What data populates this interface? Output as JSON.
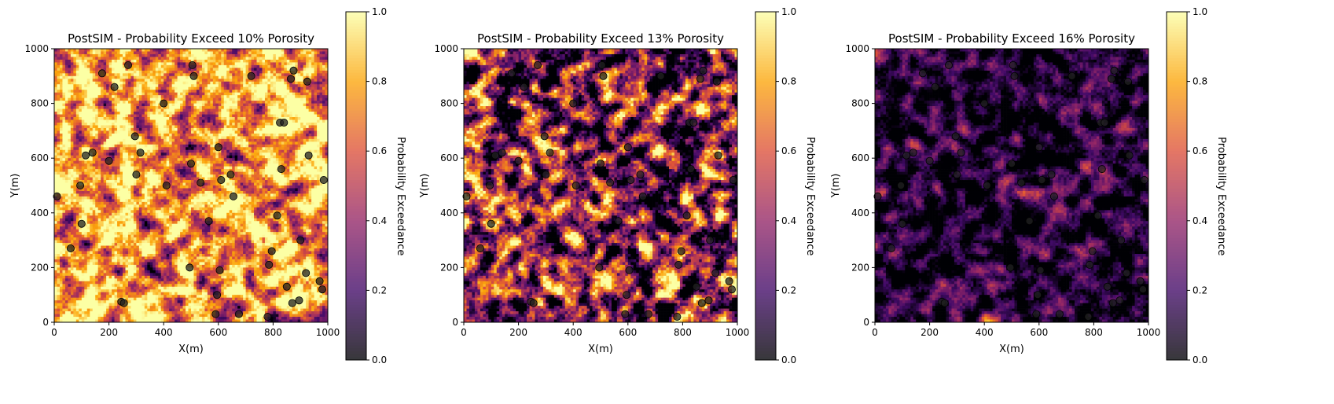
{
  "chart_data": [
    {
      "type": "heatmap",
      "title": "PostSIM - Probability Exceed 10% Porosity",
      "xlabel": "X(m)",
      "ylabel": "Y(m)",
      "xlim": [
        0,
        1000
      ],
      "ylim": [
        0,
        1000
      ],
      "xticks": [
        "0",
        "200",
        "400",
        "600",
        "800",
        "1000"
      ],
      "yticks": [
        "0",
        "200",
        "400",
        "600",
        "800",
        "1000"
      ],
      "grid": false,
      "colormap": "inferno",
      "colorbar": {
        "label": "Probability Exceedance",
        "range": [
          0.0,
          1.0
        ],
        "ticks": [
          "0.0",
          "0.2",
          "0.4",
          "0.6",
          "0.8",
          "1.0"
        ]
      },
      "field": {
        "resolution": 100,
        "mean_value": 0.78,
        "contrast": 0.32,
        "seed": 11
      },
      "wells": [
        [
          10,
          460
        ],
        [
          60,
          270
        ],
        [
          95,
          500
        ],
        [
          100,
          360
        ],
        [
          115,
          610
        ],
        [
          140,
          620
        ],
        [
          175,
          910
        ],
        [
          200,
          590
        ],
        [
          220,
          860
        ],
        [
          245,
          75
        ],
        [
          255,
          70
        ],
        [
          270,
          940
        ],
        [
          295,
          680
        ],
        [
          300,
          540
        ],
        [
          315,
          620
        ],
        [
          400,
          800
        ],
        [
          410,
          500
        ],
        [
          495,
          200
        ],
        [
          500,
          580
        ],
        [
          505,
          940
        ],
        [
          510,
          900
        ],
        [
          535,
          510
        ],
        [
          565,
          370
        ],
        [
          590,
          30
        ],
        [
          595,
          100
        ],
        [
          600,
          640
        ],
        [
          605,
          190
        ],
        [
          610,
          520
        ],
        [
          645,
          540
        ],
        [
          655,
          460
        ],
        [
          675,
          30
        ],
        [
          720,
          900
        ],
        [
          780,
          20
        ],
        [
          785,
          210
        ],
        [
          795,
          260
        ],
        [
          815,
          390
        ],
        [
          825,
          730
        ],
        [
          830,
          560
        ],
        [
          840,
          730
        ],
        [
          850,
          130
        ],
        [
          865,
          890
        ],
        [
          870,
          70
        ],
        [
          875,
          920
        ],
        [
          895,
          80
        ],
        [
          900,
          300
        ],
        [
          920,
          180
        ],
        [
          925,
          880
        ],
        [
          930,
          610
        ],
        [
          970,
          150
        ],
        [
          980,
          120
        ],
        [
          985,
          520
        ]
      ]
    },
    {
      "type": "heatmap",
      "title": "PostSIM - Probability Exceed 13% Porosity",
      "xlabel": "X(m)",
      "ylabel": "Y(m)",
      "xlim": [
        0,
        1000
      ],
      "ylim": [
        0,
        1000
      ],
      "xticks": [
        "0",
        "200",
        "400",
        "600",
        "800",
        "1000"
      ],
      "yticks": [
        "0",
        "200",
        "400",
        "600",
        "800",
        "1000"
      ],
      "grid": false,
      "colormap": "inferno",
      "colorbar": {
        "label": "Probability Exceedance",
        "range": [
          0.0,
          1.0
        ],
        "ticks": [
          "0.0",
          "0.2",
          "0.4",
          "0.6",
          "0.8",
          "1.0"
        ]
      },
      "field": {
        "resolution": 100,
        "mean_value": 0.38,
        "contrast": 0.42,
        "seed": 23
      },
      "wells": [
        [
          10,
          460
        ],
        [
          60,
          270
        ],
        [
          95,
          500
        ],
        [
          100,
          360
        ],
        [
          115,
          610
        ],
        [
          140,
          620
        ],
        [
          175,
          910
        ],
        [
          200,
          590
        ],
        [
          220,
          860
        ],
        [
          245,
          75
        ],
        [
          255,
          70
        ],
        [
          270,
          940
        ],
        [
          295,
          680
        ],
        [
          300,
          540
        ],
        [
          315,
          620
        ],
        [
          400,
          800
        ],
        [
          410,
          500
        ],
        [
          495,
          200
        ],
        [
          500,
          580
        ],
        [
          505,
          940
        ],
        [
          510,
          900
        ],
        [
          535,
          510
        ],
        [
          565,
          370
        ],
        [
          590,
          30
        ],
        [
          595,
          100
        ],
        [
          600,
          640
        ],
        [
          605,
          190
        ],
        [
          610,
          520
        ],
        [
          645,
          540
        ],
        [
          655,
          460
        ],
        [
          675,
          30
        ],
        [
          720,
          900
        ],
        [
          780,
          20
        ],
        [
          785,
          210
        ],
        [
          795,
          260
        ],
        [
          815,
          390
        ],
        [
          825,
          730
        ],
        [
          830,
          560
        ],
        [
          840,
          730
        ],
        [
          850,
          130
        ],
        [
          865,
          890
        ],
        [
          870,
          70
        ],
        [
          875,
          920
        ],
        [
          895,
          80
        ],
        [
          900,
          300
        ],
        [
          920,
          180
        ],
        [
          925,
          880
        ],
        [
          930,
          610
        ],
        [
          970,
          150
        ],
        [
          980,
          120
        ],
        [
          985,
          520
        ]
      ]
    },
    {
      "type": "heatmap",
      "title": "PostSIM - Probability Exceed 16% Porosity",
      "xlabel": "X(m)",
      "ylabel": "Y(m)",
      "xlim": [
        0,
        1000
      ],
      "ylim": [
        0,
        1000
      ],
      "xticks": [
        "0",
        "200",
        "400",
        "600",
        "800",
        "1000"
      ],
      "yticks": [
        "0",
        "200",
        "400",
        "600",
        "800",
        "1000"
      ],
      "grid": false,
      "colormap": "inferno",
      "colorbar": {
        "label": "Probability Exceedance",
        "range": [
          0.0,
          1.0
        ],
        "ticks": [
          "0.0",
          "0.2",
          "0.4",
          "0.6",
          "0.8",
          "1.0"
        ]
      },
      "field": {
        "resolution": 100,
        "mean_value": 0.1,
        "contrast": 0.2,
        "seed": 37
      },
      "wells": [
        [
          10,
          460
        ],
        [
          60,
          270
        ],
        [
          95,
          500
        ],
        [
          100,
          360
        ],
        [
          115,
          610
        ],
        [
          140,
          620
        ],
        [
          175,
          910
        ],
        [
          200,
          590
        ],
        [
          220,
          860
        ],
        [
          245,
          75
        ],
        [
          255,
          70
        ],
        [
          270,
          940
        ],
        [
          295,
          680
        ],
        [
          300,
          540
        ],
        [
          315,
          620
        ],
        [
          400,
          800
        ],
        [
          410,
          500
        ],
        [
          495,
          200
        ],
        [
          500,
          580
        ],
        [
          505,
          940
        ],
        [
          510,
          900
        ],
        [
          535,
          510
        ],
        [
          565,
          370
        ],
        [
          590,
          30
        ],
        [
          595,
          100
        ],
        [
          600,
          640
        ],
        [
          605,
          190
        ],
        [
          610,
          520
        ],
        [
          645,
          540
        ],
        [
          655,
          460
        ],
        [
          675,
          30
        ],
        [
          720,
          900
        ],
        [
          780,
          20
        ],
        [
          785,
          210
        ],
        [
          795,
          260
        ],
        [
          815,
          390
        ],
        [
          825,
          730
        ],
        [
          830,
          560
        ],
        [
          840,
          730
        ],
        [
          850,
          130
        ],
        [
          865,
          890
        ],
        [
          870,
          70
        ],
        [
          875,
          920
        ],
        [
          895,
          80
        ],
        [
          900,
          300
        ],
        [
          920,
          180
        ],
        [
          925,
          880
        ],
        [
          930,
          610
        ],
        [
          970,
          150
        ],
        [
          980,
          120
        ],
        [
          985,
          520
        ]
      ]
    }
  ],
  "colors": {
    "inferno_stops": [
      "#000004",
      "#420a68",
      "#932667",
      "#dd513a",
      "#fca50a",
      "#fcffa4"
    ],
    "well_fill": "#222222",
    "well_stroke": "#000000",
    "colorbar_overlay": "#ffffff",
    "axis": "#000000"
  }
}
